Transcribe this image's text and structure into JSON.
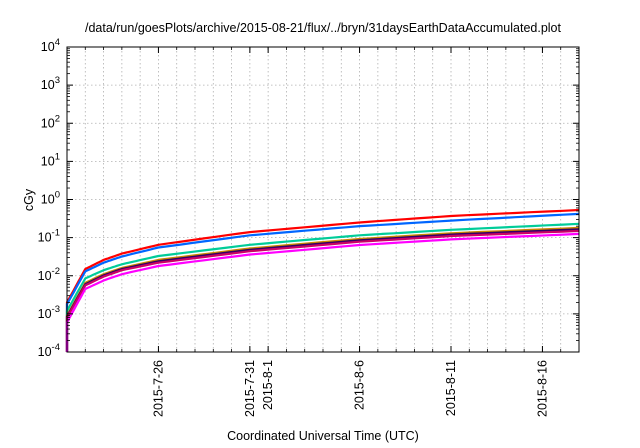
{
  "chart_data": {
    "type": "line",
    "title": "/data/run/goesPlots/archive/2015-08-21/flux/../bryn/31daysEarthDataAccumulated.plot",
    "xlabel": "Coordinated Universal Time (UTC)",
    "ylabel": "cGy",
    "yscale": "log",
    "ylim": [
      0.0001,
      10000
    ],
    "xlim": [
      "2015-07-21",
      "2015-08-18"
    ],
    "grid": true,
    "legend": "none",
    "y_ticks": [
      {
        "base": "10",
        "exp": "-4",
        "value": 0.0001
      },
      {
        "base": "10",
        "exp": "-3",
        "value": 0.001
      },
      {
        "base": "10",
        "exp": "-2",
        "value": 0.01
      },
      {
        "base": "10",
        "exp": "-1",
        "value": 0.1
      },
      {
        "base": "10",
        "exp": "0",
        "value": 1
      },
      {
        "base": "10",
        "exp": "1",
        "value": 10
      },
      {
        "base": "10",
        "exp": "2",
        "value": 100
      },
      {
        "base": "10",
        "exp": "3",
        "value": 1000
      },
      {
        "base": "10",
        "exp": "4",
        "value": 10000
      }
    ],
    "x_ticks": [
      {
        "label": "2015-7-26",
        "date": "2015-07-26"
      },
      {
        "label": "2015-7-31",
        "date": "2015-07-31"
      },
      {
        "label": "2015-8-1",
        "date": "2015-08-01"
      },
      {
        "label": "2015-8-6",
        "date": "2015-08-06"
      },
      {
        "label": "2015-8-11",
        "date": "2015-08-11"
      },
      {
        "label": "2015-8-16",
        "date": "2015-08-16"
      }
    ],
    "x": [
      "2015-07-21",
      "2015-07-22",
      "2015-07-23",
      "2015-07-24",
      "2015-07-26",
      "2015-07-31",
      "2015-08-06",
      "2015-08-11",
      "2015-08-18"
    ],
    "series": [
      {
        "color": "#ff0000",
        "values": [
          0.002,
          0.015,
          0.026,
          0.038,
          0.065,
          0.14,
          0.25,
          0.37,
          0.53
        ]
      },
      {
        "color": "#0066ff",
        "values": [
          0.0018,
          0.013,
          0.022,
          0.032,
          0.055,
          0.115,
          0.2,
          0.28,
          0.42
        ]
      },
      {
        "color": "#00cc99",
        "values": [
          0.0012,
          0.0085,
          0.014,
          0.02,
          0.033,
          0.065,
          0.115,
          0.16,
          0.23
        ]
      },
      {
        "color": "#cc8800",
        "values": [
          0.0009,
          0.0065,
          0.011,
          0.016,
          0.026,
          0.052,
          0.092,
          0.13,
          0.18
        ]
      },
      {
        "color": "#330066",
        "values": [
          0.00085,
          0.006,
          0.0102,
          0.015,
          0.024,
          0.048,
          0.085,
          0.12,
          0.165
        ]
      },
      {
        "color": "#cc0066",
        "values": [
          0.0008,
          0.0056,
          0.0095,
          0.014,
          0.022,
          0.044,
          0.078,
          0.11,
          0.15
        ]
      },
      {
        "color": "#ff00ff",
        "values": [
          0.0006,
          0.0045,
          0.0075,
          0.011,
          0.018,
          0.036,
          0.064,
          0.09,
          0.125
        ]
      }
    ]
  }
}
